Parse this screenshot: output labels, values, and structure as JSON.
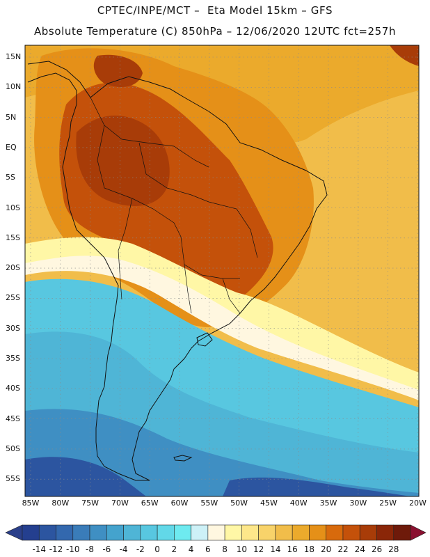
{
  "header": {
    "line1": "CPTEC/INPE/MCT –  Eta Model 15km – GFS",
    "line2": "Absolute Temperature (C) 850hPa – 12/06/2020 12UTC fct=257h"
  },
  "axes": {
    "lat_labels": [
      "15N",
      "10N",
      "5N",
      "EQ",
      "5S",
      "10S",
      "15S",
      "20S",
      "25S",
      "30S",
      "35S",
      "40S",
      "45S",
      "50S",
      "55S"
    ],
    "lon_labels": [
      "85W",
      "80W",
      "75W",
      "70W",
      "65W",
      "60W",
      "55W",
      "50W",
      "45W",
      "40W",
      "35W",
      "30W",
      "25W",
      "20W"
    ]
  },
  "colorbar": {
    "ticks": [
      "-14",
      "-12",
      "-10",
      "-8",
      "-6",
      "-4",
      "-2",
      "0",
      "2",
      "4",
      "6",
      "8",
      "10",
      "12",
      "14",
      "16",
      "18",
      "20",
      "22",
      "24",
      "26",
      "28"
    ],
    "colors": [
      "#243f8f",
      "#2c55a0",
      "#3368ae",
      "#3a7cb9",
      "#3f8fc3",
      "#44a3cd",
      "#4fb5d6",
      "#58c7e0",
      "#62d8e8",
      "#6eeaf0",
      "#cdf1f7",
      "#fff7e0",
      "#fff7a6",
      "#fde78a",
      "#f8d36a",
      "#f1bd4a",
      "#ebaa2c",
      "#e59018",
      "#d86a0c",
      "#c4510a",
      "#a83c08",
      "#8a2608",
      "#6e1a0a"
    ],
    "under_color": "#2a3f8a",
    "over_color": "#8a1030"
  },
  "map_colors": {
    "ocean_warm": "#f1bd4a",
    "ocean_mid": "#ebaa2c",
    "land_hot": "#c4510a",
    "land_warm": "#e59018",
    "land_very_hot": "#a83c08",
    "frontal_white": "#fff7e0",
    "frontal_yellow": "#fff7a6",
    "cool_cyan": "#58c7e0",
    "cool_mid": "#4fb5d6",
    "cold_blue": "#3f8fc3",
    "deep_blue": "#2c55a0",
    "coast": "#111111",
    "grid": "#8a8a8a"
  }
}
